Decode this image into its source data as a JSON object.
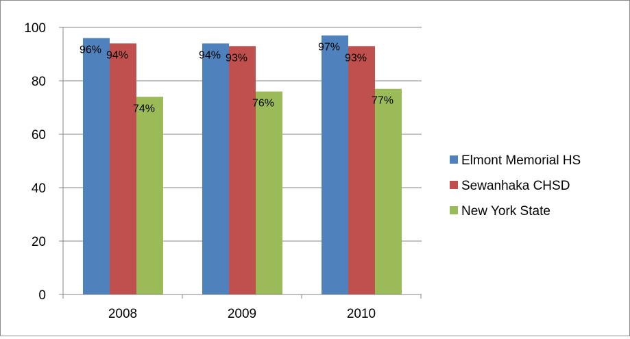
{
  "chart_data": {
    "type": "bar",
    "title": "",
    "xlabel": "",
    "ylabel": "",
    "categories": [
      "2008",
      "2009",
      "2010"
    ],
    "series": [
      {
        "name": "Elmont Memorial HS",
        "values": [
          96,
          94,
          97
        ],
        "labels": [
          "96%",
          "94%",
          "97%"
        ],
        "color": "#4f81bd"
      },
      {
        "name": "Sewanhaka CHSD",
        "values": [
          94,
          93,
          93
        ],
        "labels": [
          "94%",
          "93%",
          "93%"
        ],
        "color": "#c0504d"
      },
      {
        "name": "New York State",
        "values": [
          74,
          76,
          77
        ],
        "labels": [
          "74%",
          "76%",
          "77%"
        ],
        "color": "#9bbb59"
      }
    ],
    "ylim": [
      0,
      100
    ],
    "yticks": [
      0,
      20,
      40,
      60,
      80,
      100
    ],
    "grid": true,
    "grid_color": "#868686",
    "legend_position": "right"
  }
}
